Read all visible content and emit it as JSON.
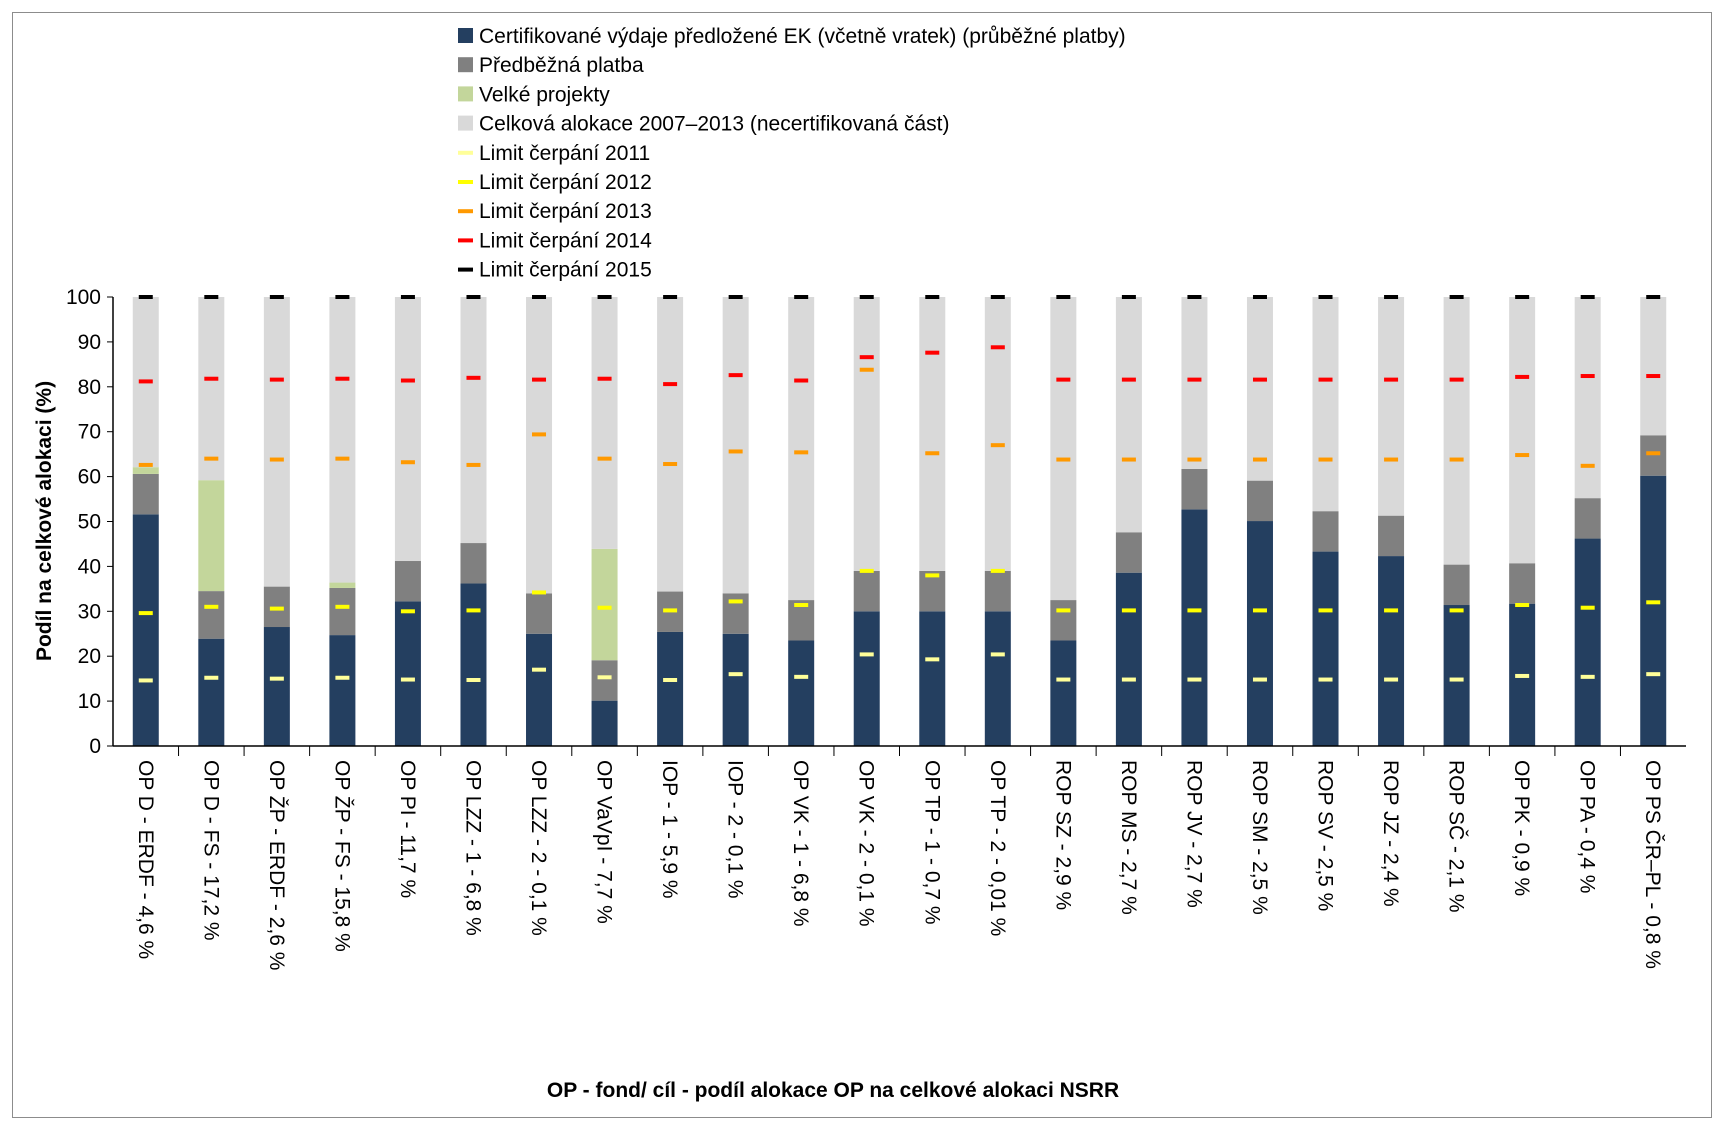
{
  "chart_data": {
    "type": "bar",
    "stacked": true,
    "ylabel": "Podíl na celkové alokaci (%)",
    "xlabel": "OP - fond/ cíl - podíl alokace OP na celkové alokaci NSRR",
    "ylim": [
      0,
      100
    ],
    "yticks": [
      0,
      10,
      20,
      30,
      40,
      50,
      60,
      70,
      80,
      90,
      100
    ],
    "grid": false,
    "legend_position": "top",
    "categories": [
      "OP D - ERDF - 4,6 %",
      "OP D - FS - 17,2 %",
      "OP ŽP - ERDF - 2,6 %",
      "OP ŽP - FS - 15,8 %",
      "OP PI - 11,7 %",
      "OP LZZ - 1 - 6,8 %",
      "OP LZZ - 2 - 0,1 %",
      "OP VaVpI - 7,7 %",
      "IOP - 1 - 5,9 %",
      "IOP - 2 - 0,1 %",
      "OP VK - 1 - 6,8 %",
      "OP VK - 2 - 0,1 %",
      "OP TP - 1 - 0,7 %",
      "OP TP - 2 - 0,01 %",
      "ROP SZ - 2,9 %",
      "ROP MS - 2,7 %",
      "ROP JV - 2,7 %",
      "ROP SM - 2,5 %",
      "ROP SV - 2,5 %",
      "ROP JZ - 2,4 %",
      "ROP SČ - 2,1 %",
      "OP PK - 0,9 %",
      "OP PA - 0,4 %",
      "OP PS ČR–PL - 0,8 %"
    ],
    "series": [
      {
        "name": "Certifikované výdaje předložené EK (včetně vratek) (průběžné platby)",
        "kind": "bar",
        "color": "#243f60",
        "values": [
          51.6,
          23.9,
          26.5,
          24.7,
          32.2,
          36.2,
          25.0,
          10.1,
          25.4,
          25.0,
          23.5,
          30.0,
          30.0,
          30.0,
          23.5,
          38.6,
          52.7,
          50.1,
          43.3,
          42.3,
          31.4,
          31.7,
          46.2,
          60.2
        ]
      },
      {
        "name": "Předběžná platba",
        "kind": "bar",
        "color": "#808080",
        "values": [
          9.0,
          10.6,
          9.0,
          10.5,
          9.0,
          9.0,
          9.0,
          9.0,
          9.0,
          9.0,
          9.0,
          9.0,
          9.0,
          9.0,
          9.0,
          9.0,
          9.0,
          9.0,
          9.0,
          9.0,
          9.0,
          9.0,
          9.0,
          9.0
        ]
      },
      {
        "name": "Velké projekty",
        "kind": "bar",
        "color": "#c3d69b",
        "values": [
          1.5,
          24.7,
          0,
          1.2,
          0,
          0,
          0,
          24.8,
          0,
          0,
          0,
          0,
          0,
          0,
          0,
          0,
          0,
          0,
          0,
          0,
          0,
          0,
          0,
          0
        ]
      },
      {
        "name": "Celková alokace 2007–2013 (necertifikovaná část)",
        "kind": "bar",
        "color": "#d9d9d9",
        "values": [
          37.9,
          40.8,
          64.5,
          63.6,
          58.8,
          54.8,
          66.0,
          56.1,
          65.6,
          66.0,
          67.5,
          61.0,
          61.0,
          61.0,
          67.5,
          52.4,
          38.3,
          40.9,
          47.7,
          48.7,
          59.6,
          59.3,
          44.8,
          30.8
        ]
      },
      {
        "name": "Limit čerpání 2011",
        "kind": "marker",
        "color": "#ffff99",
        "values": [
          14.6,
          15.2,
          15.0,
          15.2,
          14.8,
          14.7,
          17.0,
          15.3,
          14.7,
          16.0,
          15.4,
          20.4,
          19.3,
          20.4,
          14.8,
          14.8,
          14.8,
          14.8,
          14.8,
          14.8,
          14.8,
          15.6,
          15.4,
          16.0
        ]
      },
      {
        "name": "Limit čerpání 2012",
        "kind": "marker",
        "color": "#ffff00",
        "values": [
          29.6,
          31.0,
          30.6,
          31.0,
          30.0,
          30.2,
          34.2,
          30.8,
          30.2,
          32.2,
          31.4,
          39.0,
          38.0,
          39.0,
          30.2,
          30.2,
          30.2,
          30.2,
          30.2,
          30.2,
          30.2,
          31.4,
          30.8,
          32.0
        ]
      },
      {
        "name": "Limit čerpání 2013",
        "kind": "marker",
        "color": "#ff9900",
        "values": [
          62.6,
          64.0,
          63.8,
          64.0,
          63.2,
          62.6,
          69.4,
          64.0,
          62.8,
          65.6,
          65.4,
          83.8,
          65.2,
          67.0,
          63.8,
          63.8,
          63.8,
          63.8,
          63.8,
          63.8,
          63.8,
          64.8,
          62.4,
          65.2
        ]
      },
      {
        "name": "Limit čerpání 2014",
        "kind": "marker",
        "color": "#ff0000",
        "values": [
          81.2,
          81.8,
          81.6,
          81.8,
          81.4,
          82.0,
          81.6,
          81.8,
          80.6,
          82.6,
          81.4,
          86.6,
          87.6,
          88.8,
          81.6,
          81.6,
          81.6,
          81.6,
          81.6,
          81.6,
          81.6,
          82.2,
          82.4,
          82.4
        ]
      },
      {
        "name": "Limit čerpání 2015",
        "kind": "marker",
        "color": "#000000",
        "values": [
          100,
          100,
          100,
          100,
          100,
          100,
          100,
          100,
          100,
          100,
          100,
          100,
          100,
          100,
          100,
          100,
          100,
          100,
          100,
          100,
          100,
          100,
          100,
          100
        ]
      }
    ]
  }
}
